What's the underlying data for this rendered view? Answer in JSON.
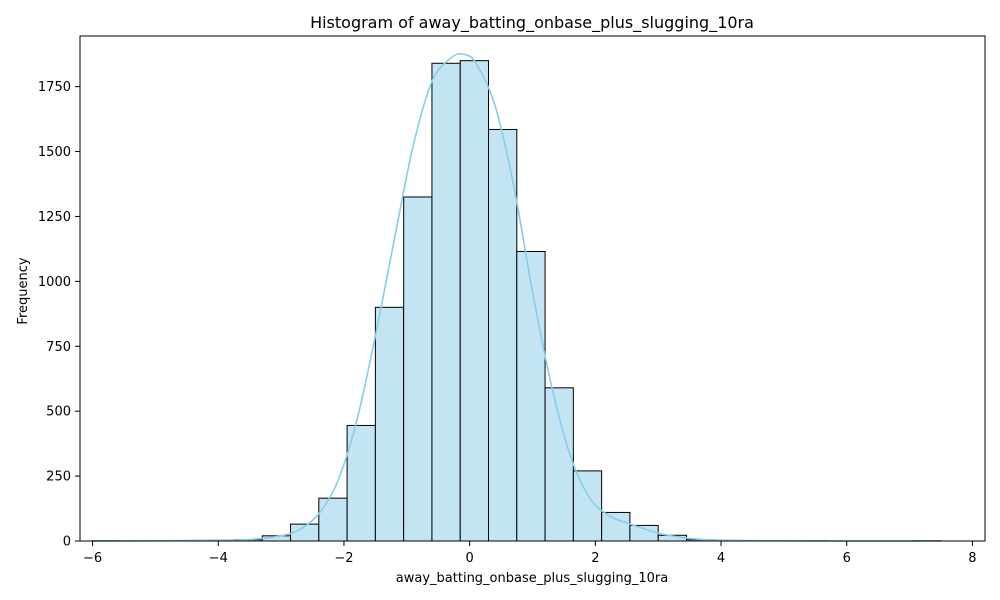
{
  "chart_data": {
    "type": "bar",
    "title": "Histogram of away_batting_onbase_plus_slugging_10ra",
    "xlabel": "away_batting_onbase_plus_slugging_10ra",
    "ylabel": "Frequency",
    "xlim": [
      -6.2,
      8.2
    ],
    "ylim": [
      0,
      1945
    ],
    "xticks": [
      -6,
      -4,
      -2,
      0,
      2,
      4,
      6,
      8
    ],
    "yticks": [
      0,
      250,
      500,
      750,
      1000,
      1250,
      1500,
      1750
    ],
    "bin_edges": [
      -6.0,
      -5.55,
      -5.1,
      -4.65,
      -4.2,
      -3.75,
      -3.3,
      -2.85,
      -2.4,
      -1.95,
      -1.5,
      -1.05,
      -0.6,
      -0.15,
      0.3,
      0.75,
      1.2,
      1.65,
      2.1,
      2.55,
      3.0,
      3.45,
      3.9,
      4.35,
      4.8,
      5.25,
      5.7,
      6.15,
      6.6,
      7.05,
      7.5
    ],
    "counts": [
      1,
      0,
      0,
      1,
      2,
      5,
      20,
      65,
      165,
      445,
      900,
      1325,
      1840,
      1850,
      1585,
      1115,
      590,
      270,
      110,
      60,
      22,
      5,
      2,
      1,
      0,
      1,
      0,
      0,
      0,
      1
    ],
    "kde_x": [
      -6,
      -5,
      -4,
      -3.5,
      -3,
      -2.7,
      -2.4,
      -2.1,
      -1.8,
      -1.5,
      -1.2,
      -0.9,
      -0.6,
      -0.3,
      -0.1,
      0.1,
      0.4,
      0.7,
      1.0,
      1.3,
      1.6,
      1.9,
      2.2,
      2.5,
      2.8,
      3.1,
      3.5,
      4,
      5,
      6,
      7.5
    ],
    "kde_y": [
      0,
      1,
      3,
      6,
      20,
      45,
      105,
      230,
      460,
      790,
      1160,
      1520,
      1770,
      1860,
      1875,
      1840,
      1680,
      1370,
      960,
      600,
      330,
      170,
      100,
      70,
      45,
      25,
      10,
      3,
      1,
      0,
      0
    ],
    "bar_color": "#c2e4f3",
    "edge_color": "#000000",
    "kde_color": "#87ceeb",
    "grid": false
  }
}
